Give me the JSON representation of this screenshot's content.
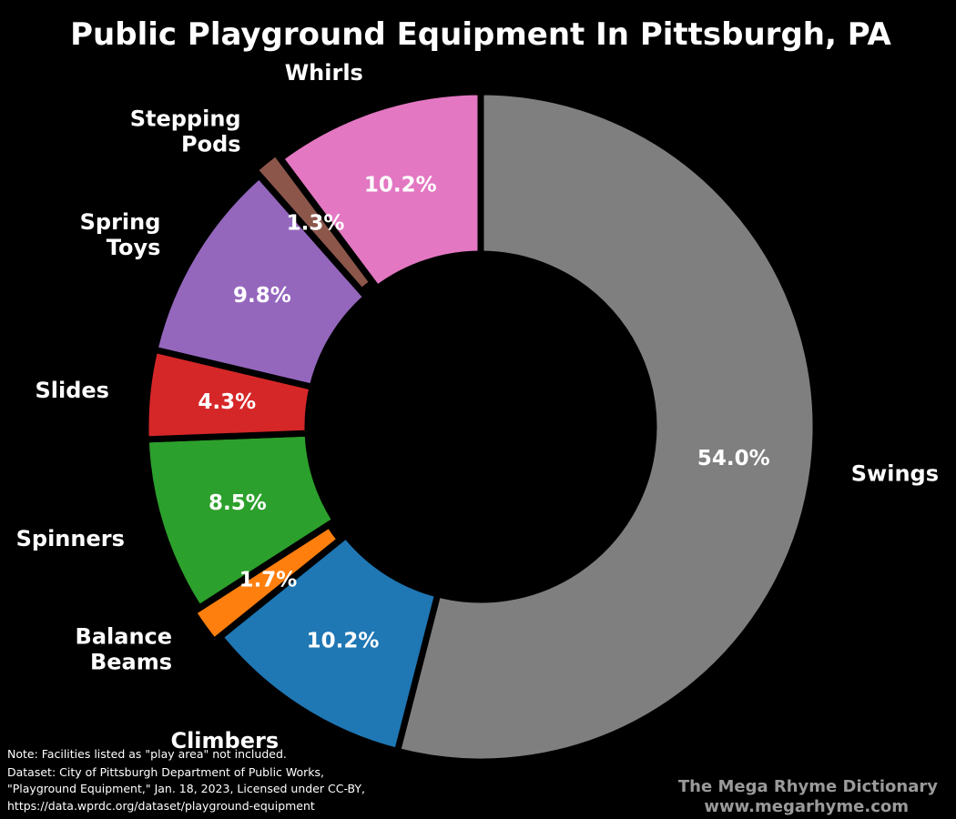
{
  "chart_data": {
    "type": "pie",
    "variant": "donut",
    "title": "Public Playground Equipment In Pittsburgh, PA",
    "start_angle_deg": 90,
    "direction": "clockwise",
    "slices": [
      {
        "label": "Swings",
        "label_lines": [
          "Swings"
        ],
        "value": 54.0,
        "display": "54.0%",
        "color": "#7f7f7f"
      },
      {
        "label": "Climbers",
        "label_lines": [
          "Climbers"
        ],
        "value": 10.2,
        "display": "10.2%",
        "color": "#1f77b4"
      },
      {
        "label": "Balance Beams",
        "label_lines": [
          "Balance",
          "Beams"
        ],
        "value": 1.7,
        "display": "1.7%",
        "color": "#ff7f0e"
      },
      {
        "label": "Spinners",
        "label_lines": [
          "Spinners"
        ],
        "value": 8.5,
        "display": "8.5%",
        "color": "#2ca02c"
      },
      {
        "label": "Slides",
        "label_lines": [
          "Slides"
        ],
        "value": 4.3,
        "display": "4.3%",
        "color": "#d62728"
      },
      {
        "label": "Spring Toys",
        "label_lines": [
          "Spring",
          "Toys"
        ],
        "value": 9.8,
        "display": "9.8%",
        "color": "#9467bd"
      },
      {
        "label": "Stepping Pods",
        "label_lines": [
          "Stepping",
          "Pods"
        ],
        "value": 1.3,
        "display": "1.3%",
        "color": "#8c564b"
      },
      {
        "label": "Whirls",
        "label_lines": [
          "Whirls"
        ],
        "value": 10.2,
        "display": "10.2%",
        "color": "#e377c2"
      }
    ]
  },
  "notes": [
    "Note: Facilities listed as \"play area\" not included.",
    "Dataset: City of Pittsburgh Department of Public Works,",
    "\"Playground Equipment,\" Jan. 18, 2023, Licensed under CC-BY,",
    "https://data.wprdc.org/dataset/playground-equipment"
  ],
  "branding": {
    "line1": "The Mega Rhyme Dictionary",
    "line2": "www.megarhyme.com"
  },
  "colors": {
    "background": "#000000",
    "text": "#ffffff",
    "branding": "#9a9a9a"
  }
}
